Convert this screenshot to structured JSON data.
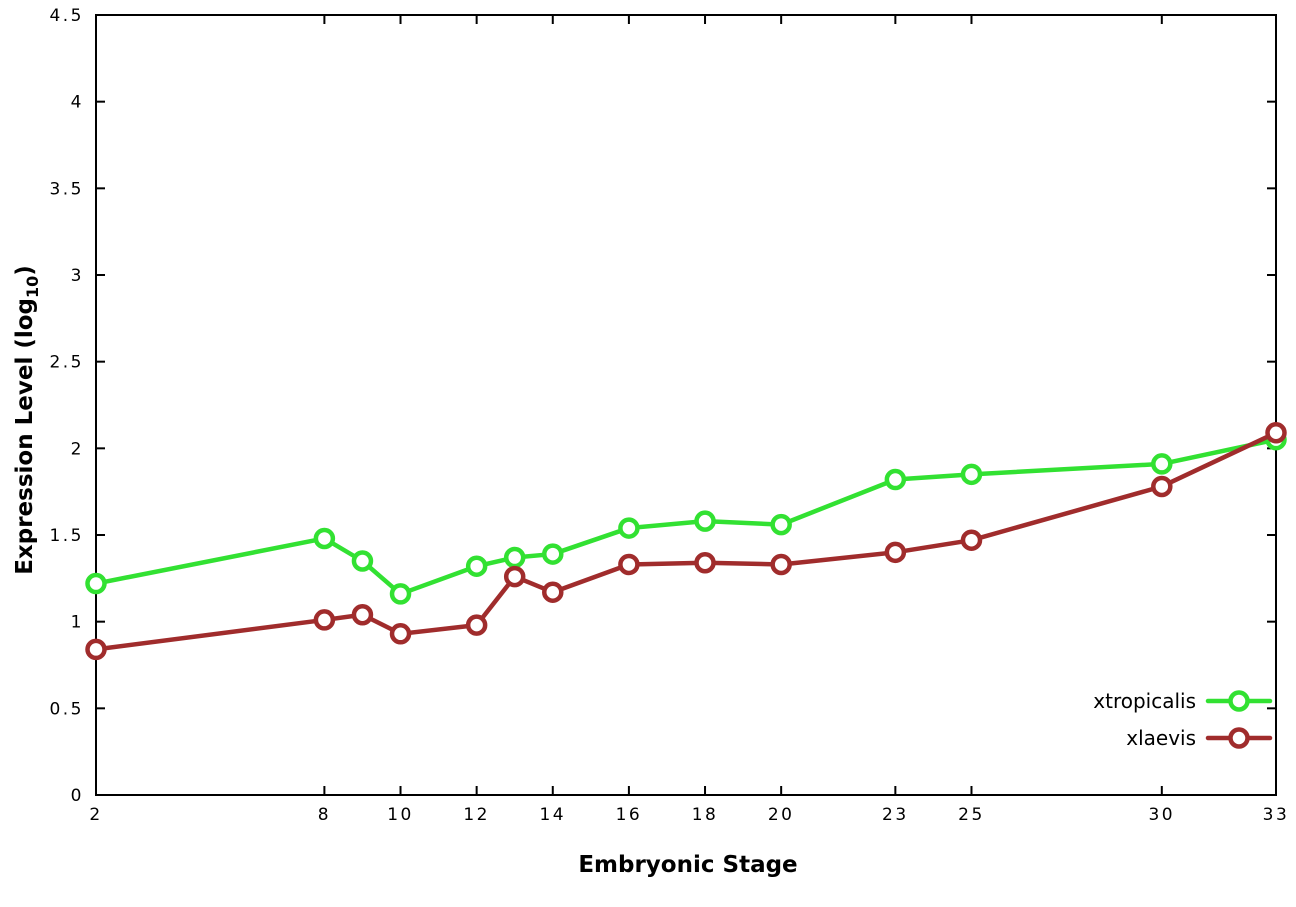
{
  "chart_data": {
    "type": "line",
    "title": "",
    "xlabel": "Embryonic Stage",
    "ylabel": {
      "prefix": "Expression Level (log",
      "sub": "10",
      "suffix": ")"
    },
    "xlim": [
      2,
      33
    ],
    "ylim": [
      0,
      4.5
    ],
    "grid": false,
    "legend_position": "bottom-right",
    "x_ticks": [
      2,
      8,
      10,
      12,
      14,
      16,
      18,
      20,
      23,
      25,
      30,
      33
    ],
    "y_ticks": [
      0,
      0.5,
      1,
      1.5,
      2,
      2.5,
      3,
      3.5,
      4,
      4.5
    ],
    "x": [
      2,
      8,
      9,
      10,
      12,
      13,
      14,
      16,
      18,
      20,
      23,
      25,
      30,
      33
    ],
    "series": [
      {
        "name": "xtropicalis",
        "color": "#32e132",
        "values": [
          1.22,
          1.48,
          1.35,
          1.16,
          1.32,
          1.37,
          1.39,
          1.54,
          1.58,
          1.56,
          1.82,
          1.85,
          1.91,
          2.05
        ]
      },
      {
        "name": "xlaevis",
        "color": "#a02c2c",
        "values": [
          0.84,
          1.01,
          1.04,
          0.93,
          0.98,
          1.26,
          1.17,
          1.33,
          1.34,
          1.33,
          1.4,
          1.47,
          1.78,
          2.09
        ]
      }
    ]
  }
}
